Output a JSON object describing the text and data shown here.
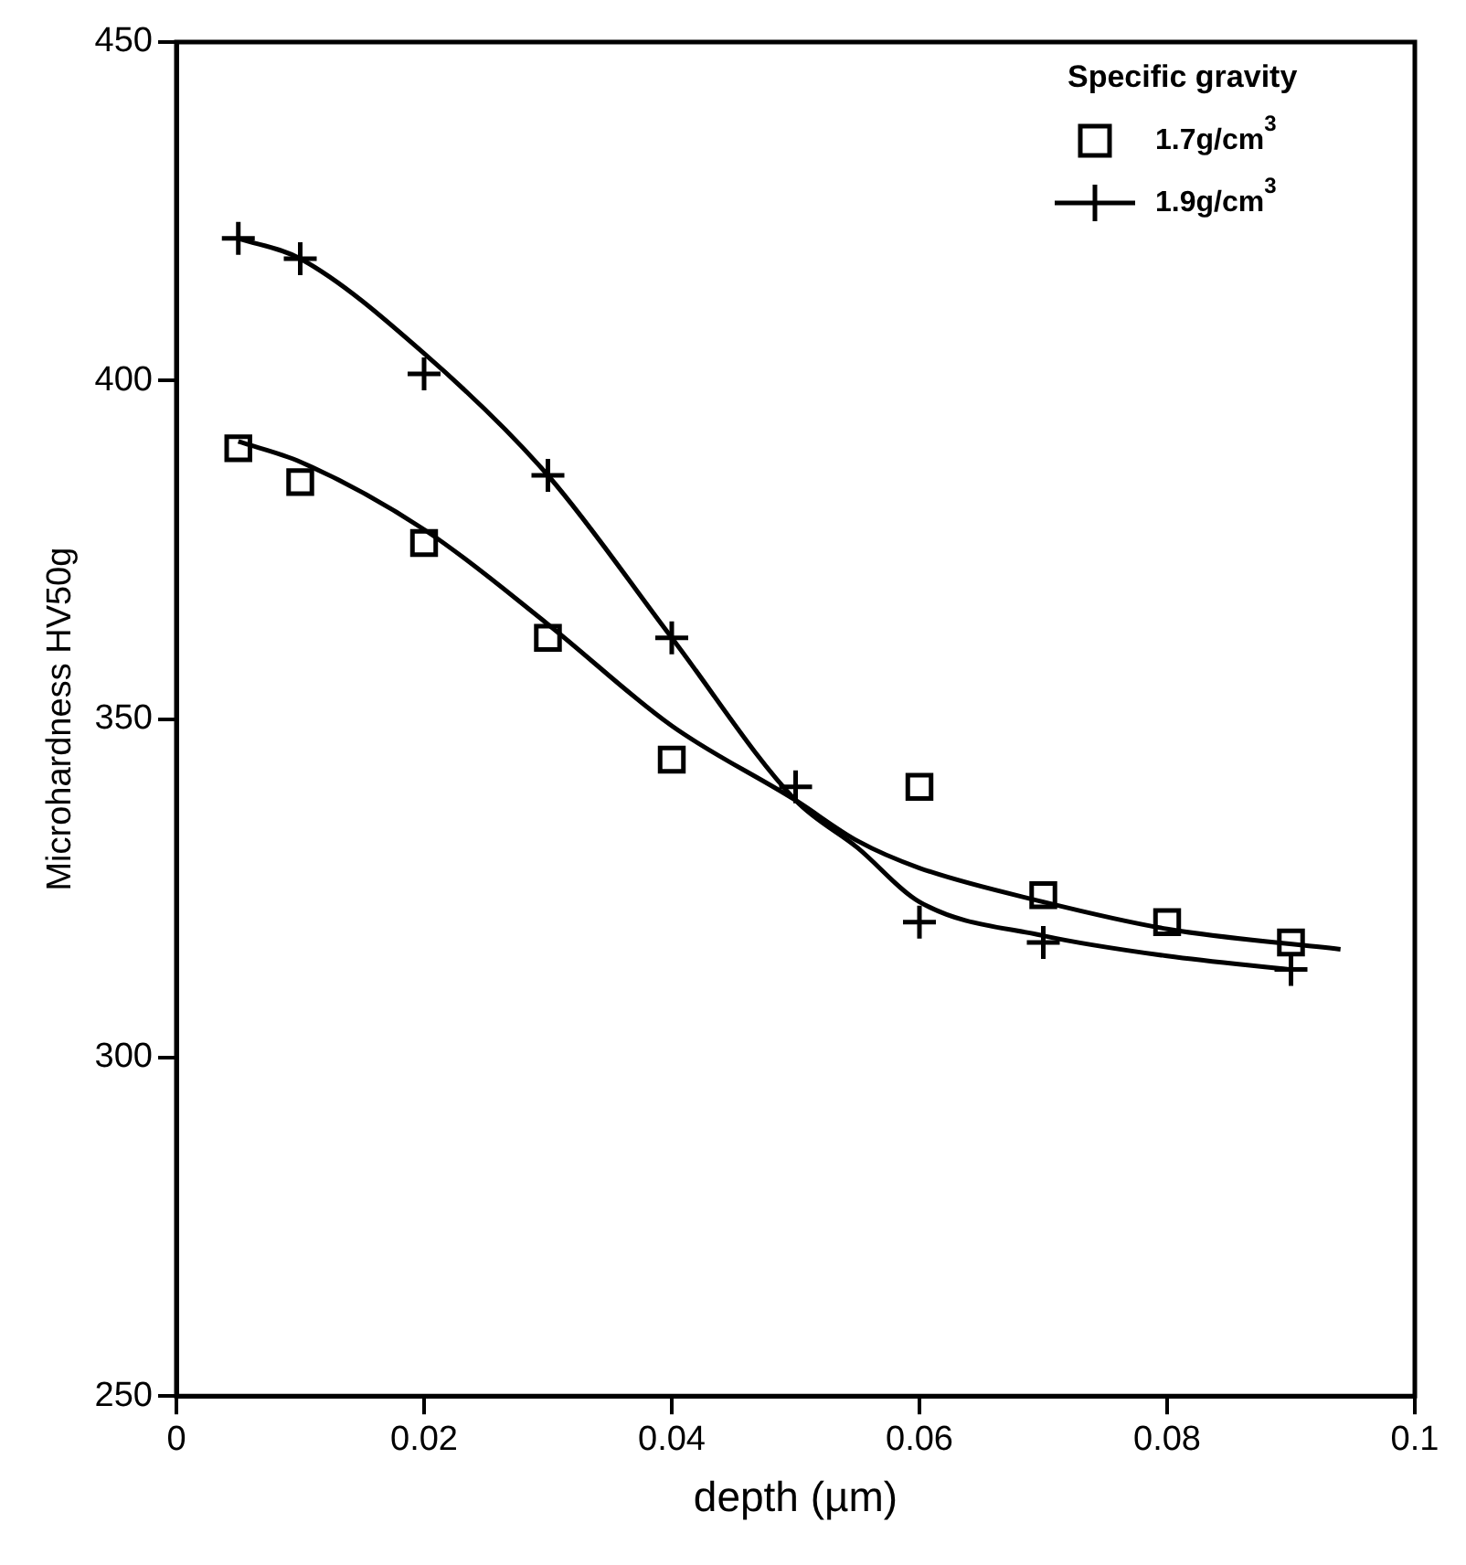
{
  "chart_data": {
    "type": "scatter",
    "xlabel": "depth (µm)",
    "ylabel": "Microhardness HV50g",
    "legend_title": "Specific gravity",
    "legend": "top right",
    "grid": false,
    "xlim": [
      0,
      0.1
    ],
    "xticks": [
      {
        "value": 0,
        "label": "0"
      },
      {
        "value": 0.02,
        "label": "0.02"
      },
      {
        "value": 0.04,
        "label": "0.04"
      },
      {
        "value": 0.06,
        "label": "0.06"
      },
      {
        "value": 0.08,
        "label": "0.08"
      },
      {
        "value": 0.1,
        "label": "0.1"
      }
    ],
    "ylim": [
      250,
      450
    ],
    "yticks": [
      250,
      300,
      350,
      400,
      450
    ],
    "series": [
      {
        "name": "1.7g/cm$^{3}$",
        "marker": "square",
        "color": "#000000",
        "x": [
          0.005,
          0.01,
          0.02,
          0.03,
          0.04,
          0.06,
          0.07,
          0.08,
          0.09
        ],
        "values": [
          390,
          385,
          376,
          362,
          344,
          340,
          324,
          320,
          317
        ]
      },
      {
        "name": "1.9g/cm$^{3}$",
        "marker": "cross",
        "color": "#000000",
        "x": [
          0.005,
          0.01,
          0.02,
          0.03,
          0.04,
          0.05,
          0.06,
          0.07,
          0.09
        ],
        "values": [
          421,
          418,
          401,
          386,
          362,
          340,
          320,
          317,
          313
        ]
      },
      {
        "type": "line",
        "marker": "none",
        "line_style": "solid",
        "color": "#000000",
        "x": [
          0.005,
          0.01,
          0.02,
          0.03,
          0.04,
          0.05,
          0.055,
          0.06,
          0.07,
          0.08,
          0.094
        ],
        "values": [
          391,
          388,
          378,
          364,
          349,
          338,
          332,
          328,
          323,
          319,
          316
        ]
      },
      {
        "type": "line",
        "marker": "none",
        "line_style": "solid",
        "color": "#000000",
        "x": [
          0.005,
          0.01,
          0.02,
          0.03,
          0.04,
          0.05,
          0.055,
          0.06,
          0.07,
          0.08,
          0.09
        ],
        "values": [
          421,
          418,
          404,
          386,
          362,
          338,
          331,
          323,
          318,
          315,
          313
        ]
      }
    ]
  }
}
